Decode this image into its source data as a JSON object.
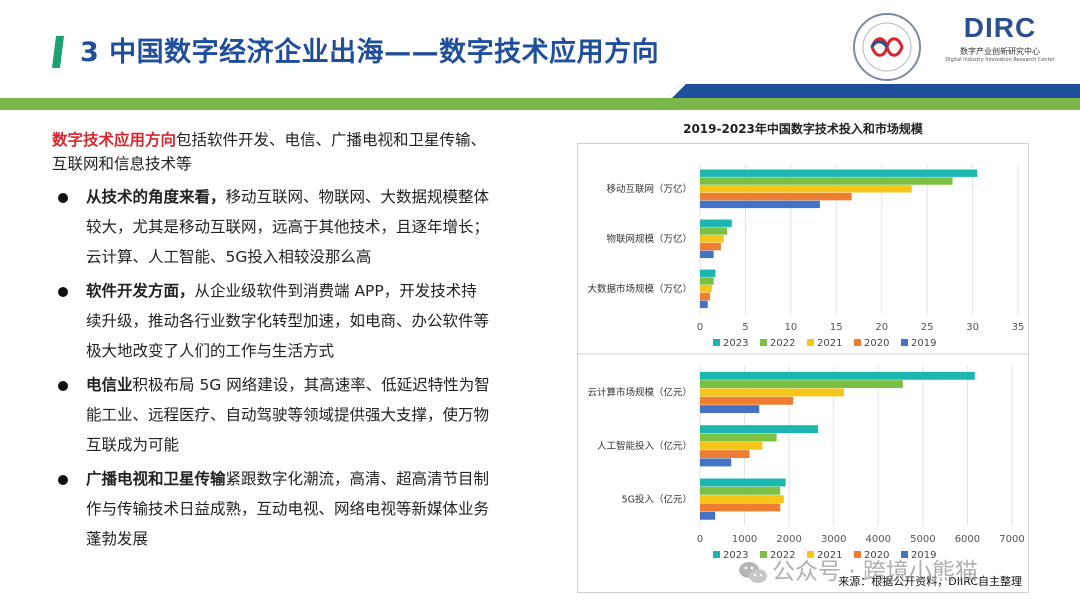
{
  "title": "3 中国数字经济企业出海——数字技术应用方向",
  "colors": {
    "title": "#1f4e9c",
    "band_green": "#7ab648",
    "band_blue": "#1f4e9c",
    "highlight": "#d9262c"
  },
  "logo": {
    "main": "DIRC",
    "sub_cn": "数字产业创新研究中心",
    "sub_en": "Digital Industry Innovation Research Center",
    "icon": "dirc-logo"
  },
  "seal": {
    "icon": "association-seal-emblem"
  },
  "intro": {
    "highlight": "数字技术应用方向",
    "rest": "包括软件开发、电信、广播电视和卫星传输、互联网和信息技术等"
  },
  "bullets": [
    {
      "bold": "从技术的角度来看，",
      "text": "移动互联网、物联网、大数据规模整体较大，尤其是移动互联网，远高于其他技术，且逐年增长；云计算、人工智能、5G投入相较没那么高"
    },
    {
      "bold": "软件开发方面，",
      "text": "从企业级软件到消费端 APP，开发技术持续升级，推动各行业数字化转型加速，如电商、办公软件等极大地改变了人们的工作与生活方式"
    },
    {
      "bold": "电信业",
      "text": "积极布局 5G 网络建设，其高速率、低延迟特性为智能工业、远程医疗、自动驾驶等领域提供强大支撑，使万物互联成为可能"
    },
    {
      "bold": "广播电视和卫星传输",
      "text": "紧跟数字化潮流，高清、超高清节目制作与传输技术日益成熟，互动电视、网络电视等新媒体业务蓬勃发展"
    }
  ],
  "chart_title": "2019-2023年中国数字技术投入和市场规模",
  "chart_data": [
    {
      "type": "bar",
      "orientation": "horizontal",
      "categories": [
        "移动互联网（万亿）",
        "物联网规模（万亿）",
        "大数据市场规模（万亿）"
      ],
      "series": [
        {
          "name": "2023",
          "color": "#1ab7b0",
          "values": [
            30.5,
            3.5,
            1.7
          ]
        },
        {
          "name": "2022",
          "color": "#7ac143",
          "values": [
            27.8,
            3.0,
            1.5
          ]
        },
        {
          "name": "2021",
          "color": "#f5c518",
          "values": [
            23.3,
            2.6,
            1.3
          ]
        },
        {
          "name": "2020",
          "color": "#ef7d31",
          "values": [
            16.7,
            2.3,
            1.1
          ]
        },
        {
          "name": "2019",
          "color": "#4472c4",
          "values": [
            13.2,
            1.5,
            0.85
          ]
        }
      ],
      "xticks": [
        0,
        5,
        10,
        15,
        20,
        25,
        30,
        35
      ],
      "xlim": [
        0,
        35
      ],
      "legend": "bottom",
      "grid": true
    },
    {
      "type": "bar",
      "orientation": "horizontal",
      "categories": [
        "云计算市场规模（亿元）",
        "人工智能投入（亿元）",
        "5G投入（亿元）"
      ],
      "series": [
        {
          "name": "2023",
          "color": "#1ab7b0",
          "values": [
            6165,
            2650,
            1920
          ]
        },
        {
          "name": "2022",
          "color": "#7ac143",
          "values": [
            4550,
            1720,
            1800
          ]
        },
        {
          "name": "2021",
          "color": "#f5c518",
          "values": [
            3230,
            1400,
            1880
          ]
        },
        {
          "name": "2020",
          "color": "#ef7d31",
          "values": [
            2090,
            1110,
            1800
          ]
        },
        {
          "name": "2019",
          "color": "#4472c4",
          "values": [
            1330,
            700,
            340
          ]
        }
      ],
      "xticks": [
        0,
        1000,
        2000,
        3000,
        4000,
        5000,
        6000,
        7000
      ],
      "xlim": [
        0,
        7000
      ],
      "legend": "bottom",
      "grid": true
    }
  ],
  "source": "来源：根据公开资料，DIIRC自主整理",
  "watermark": "公众号 · 跨境小熊猫",
  "watermark_icon": "wechat-icon"
}
